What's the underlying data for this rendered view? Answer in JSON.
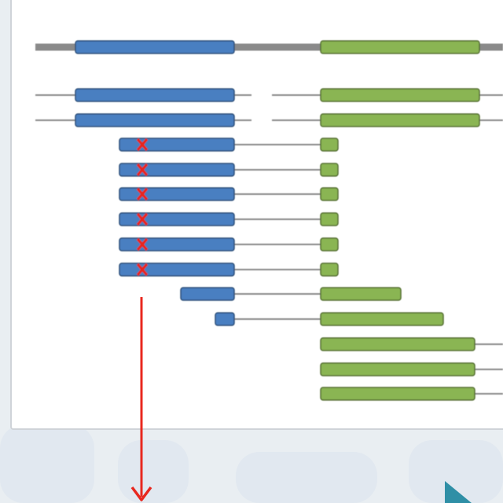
{
  "colors": {
    "background": "#e9eef2",
    "watermark": "#dce5ee",
    "card": "#ffffff",
    "card_border": "#cfd3d8",
    "blue_block": "#4a7fc1",
    "blue_block_border": "#2e4f78",
    "green_block": "#8ab552",
    "green_block_border": "#556e33",
    "connector": "#8a8a8a",
    "mark": "#e8281f",
    "corner_accent": "#2f8fa6"
  },
  "diagram": {
    "rows": [
      {
        "kind": "full",
        "blue": true,
        "green": true
      },
      {
        "kind": "full-split",
        "blue": true,
        "green": true
      },
      {
        "kind": "full-split",
        "blue": true,
        "green": true
      },
      {
        "kind": "short-green",
        "blue": true,
        "green": true,
        "marked": true
      },
      {
        "kind": "short-green",
        "blue": true,
        "green": true,
        "marked": true
      },
      {
        "kind": "short-green",
        "blue": true,
        "green": true,
        "marked": true
      },
      {
        "kind": "short-green",
        "blue": true,
        "green": true,
        "marked": true
      },
      {
        "kind": "short-green",
        "blue": true,
        "green": true,
        "marked": true
      },
      {
        "kind": "short-green",
        "blue": true,
        "green": true,
        "marked": true
      },
      {
        "kind": "short-blue",
        "blue": true,
        "green": true
      },
      {
        "kind": "tiny-blue",
        "blue": true,
        "green": true
      },
      {
        "kind": "green-only",
        "blue": false,
        "green": true
      },
      {
        "kind": "green-only",
        "blue": false,
        "green": true
      },
      {
        "kind": "green-only",
        "blue": false,
        "green": true
      }
    ],
    "marked_count": 6
  },
  "icons": [
    "arrow-down-icon",
    "cross-mark-icon"
  ]
}
